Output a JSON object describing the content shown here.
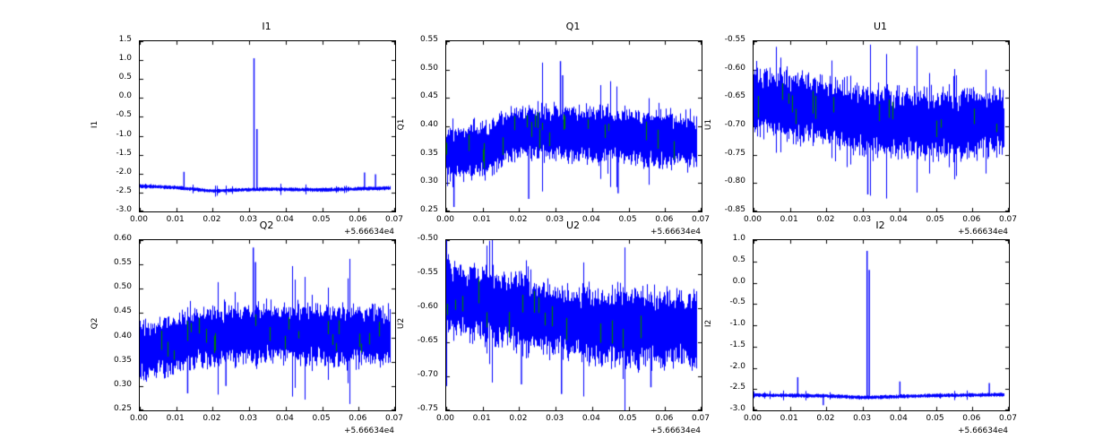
{
  "figure": {
    "background": "#ffffff",
    "line_color": "#0000ff",
    "marker_color": "#007f00",
    "text_color": "#000000"
  },
  "chart_data": [
    {
      "type": "line",
      "title": "I1",
      "ylabel": "I1",
      "xlabel": "",
      "xlim": [
        0,
        0.07
      ],
      "ylim": [
        -3.0,
        1.5
      ],
      "xtick_values": [
        0,
        0.01,
        0.02,
        0.03,
        0.04,
        0.05,
        0.06,
        0.07
      ],
      "xtick_labels": [
        "0.00",
        "0.01",
        "0.02",
        "0.03",
        "0.04",
        "0.05",
        "0.06",
        "0.07"
      ],
      "x_offset_label": "+5.66634e4",
      "ytick_values": [
        1.5,
        1.0,
        0.5,
        0.0,
        -0.5,
        -1.0,
        -1.5,
        -2.0,
        -2.5,
        -3.0
      ],
      "ytick_labels": [
        "1.5",
        "1.0",
        "0.5",
        "0.0",
        "-0.5",
        "-1.0",
        "-1.5",
        "-2.0",
        "-2.5",
        "-3.0"
      ],
      "series_desc": {
        "seed": 11,
        "x_data_max": 0.0685,
        "baseline_keypoints": [
          [
            0,
            -2.33
          ],
          [
            0.01,
            -2.37
          ],
          [
            0.02,
            -2.46
          ],
          [
            0.027,
            -2.43
          ],
          [
            0.035,
            -2.41
          ],
          [
            0.05,
            -2.43
          ],
          [
            0.0685,
            -2.38
          ]
        ],
        "noise_half_width": 0.05,
        "excursion": 2.2,
        "spikes": [
          [
            0.0312,
            1.05
          ],
          [
            0.032,
            -0.82
          ],
          [
            0.012,
            -1.95
          ],
          [
            0.0615,
            -1.97
          ],
          [
            0.0645,
            -2.02
          ]
        ],
        "green_marks": 0
      }
    },
    {
      "type": "line",
      "title": "Q1",
      "ylabel": "Q1",
      "xlabel": "",
      "xlim": [
        0,
        0.07
      ],
      "ylim": [
        0.25,
        0.55
      ],
      "xtick_values": [
        0,
        0.01,
        0.02,
        0.03,
        0.04,
        0.05,
        0.06,
        0.07
      ],
      "xtick_labels": [
        "0.00",
        "0.01",
        "0.02",
        "0.03",
        "0.04",
        "0.05",
        "0.06",
        "0.07"
      ],
      "x_offset_label": "+5.66634e4",
      "ytick_values": [
        0.55,
        0.5,
        0.45,
        0.4,
        0.35,
        0.3,
        0.25
      ],
      "ytick_labels": [
        "0.55",
        "0.50",
        "0.45",
        "0.40",
        "0.35",
        "0.30",
        "0.25"
      ],
      "series_desc": {
        "seed": 22,
        "x_data_max": 0.0685,
        "baseline_keypoints": [
          [
            0,
            0.348
          ],
          [
            0.012,
            0.362
          ],
          [
            0.02,
            0.392
          ],
          [
            0.03,
            0.39
          ],
          [
            0.045,
            0.383
          ],
          [
            0.0685,
            0.373
          ]
        ],
        "noise_half_width": 0.048,
        "excursion": 1.5,
        "spikes": [
          [
            0.0312,
            0.515
          ],
          [
            0.0318,
            0.49
          ],
          [
            0.002,
            0.258
          ],
          [
            0.0225,
            0.272
          ],
          [
            0.047,
            0.282
          ]
        ],
        "green_marks": 22
      }
    },
    {
      "type": "line",
      "title": "U1",
      "ylabel": "U1",
      "xlabel": "",
      "xlim": [
        0,
        0.07
      ],
      "ylim": [
        -0.85,
        -0.55
      ],
      "xtick_values": [
        0,
        0.01,
        0.02,
        0.03,
        0.04,
        0.05,
        0.06,
        0.07
      ],
      "xtick_labels": [
        "0.00",
        "0.01",
        "0.02",
        "0.03",
        "0.04",
        "0.05",
        "0.06",
        "0.07"
      ],
      "x_offset_label": "+5.66634e4",
      "ytick_values": [
        -0.55,
        -0.6,
        -0.65,
        -0.7,
        -0.75,
        -0.8,
        -0.85
      ],
      "ytick_labels": [
        "-0.55",
        "-0.60",
        "-0.65",
        "-0.70",
        "-0.75",
        "-0.80",
        "-0.85"
      ],
      "series_desc": {
        "seed": 33,
        "x_data_max": 0.0685,
        "baseline_keypoints": [
          [
            0,
            -0.652
          ],
          [
            0.015,
            -0.668
          ],
          [
            0.03,
            -0.69
          ],
          [
            0.05,
            -0.697
          ],
          [
            0.0685,
            -0.693
          ]
        ],
        "noise_half_width": 0.058,
        "excursion": 1.4,
        "spikes": [
          [
            0.0312,
            -0.82
          ]
        ],
        "green_marks": 16
      }
    },
    {
      "type": "line",
      "title": "Q2",
      "ylabel": "Q2",
      "xlabel": "",
      "xlim": [
        0,
        0.07
      ],
      "ylim": [
        0.25,
        0.6
      ],
      "xtick_values": [
        0,
        0.01,
        0.02,
        0.03,
        0.04,
        0.05,
        0.06,
        0.07
      ],
      "xtick_labels": [
        "0.00",
        "0.01",
        "0.02",
        "0.03",
        "0.04",
        "0.05",
        "0.06",
        "0.07"
      ],
      "x_offset_label": "+5.66634e4",
      "ytick_values": [
        0.6,
        0.55,
        0.5,
        0.45,
        0.4,
        0.35,
        0.3,
        0.25
      ],
      "ytick_labels": [
        "0.60",
        "0.55",
        "0.50",
        "0.45",
        "0.40",
        "0.35",
        "0.30",
        "0.25"
      ],
      "series_desc": {
        "seed": 44,
        "x_data_max": 0.0685,
        "baseline_keypoints": [
          [
            0,
            0.372
          ],
          [
            0.02,
            0.405
          ],
          [
            0.035,
            0.41
          ],
          [
            0.055,
            0.405
          ],
          [
            0.0685,
            0.402
          ]
        ],
        "noise_half_width": 0.06,
        "excursion": 1.5,
        "spikes": [
          [
            0.031,
            0.585
          ],
          [
            0.0316,
            0.555
          ],
          [
            0.013,
            0.285
          ],
          [
            0.0235,
            0.3
          ]
        ],
        "green_marks": 22
      }
    },
    {
      "type": "line",
      "title": "U2",
      "ylabel": "U2",
      "xlabel": "",
      "xlim": [
        0,
        0.07
      ],
      "ylim": [
        -0.75,
        -0.5
      ],
      "xtick_values": [
        0,
        0.01,
        0.02,
        0.03,
        0.04,
        0.05,
        0.06,
        0.07
      ],
      "xtick_labels": [
        "0.00",
        "0.01",
        "0.02",
        "0.03",
        "0.04",
        "0.05",
        "0.06",
        "0.07"
      ],
      "x_offset_label": "+5.66634e4",
      "ytick_values": [
        -0.5,
        -0.55,
        -0.6,
        -0.65,
        -0.7,
        -0.75
      ],
      "ytick_labels": [
        "-0.50",
        "-0.55",
        "-0.60",
        "-0.65",
        "-0.70",
        "-0.75"
      ],
      "series_desc": {
        "seed": 55,
        "x_data_max": 0.0685,
        "baseline_keypoints": [
          [
            0,
            -0.582
          ],
          [
            0.02,
            -0.605
          ],
          [
            0.04,
            -0.625
          ],
          [
            0.0685,
            -0.632
          ]
        ],
        "noise_half_width": 0.055,
        "excursion": 1.4,
        "spikes": [
          [
            0.0315,
            -0.726
          ],
          [
            0.0205,
            -0.712
          ],
          [
            0.056,
            -0.716
          ]
        ],
        "green_marks": 16
      }
    },
    {
      "type": "line",
      "title": "I2",
      "ylabel": "I2",
      "xlabel": "",
      "xlim": [
        0,
        0.07
      ],
      "ylim": [
        -3.0,
        1.0
      ],
      "xtick_values": [
        0,
        0.01,
        0.02,
        0.03,
        0.04,
        0.05,
        0.06,
        0.07
      ],
      "xtick_labels": [
        "0.00",
        "0.01",
        "0.02",
        "0.03",
        "0.04",
        "0.05",
        "0.06",
        "0.07"
      ],
      "x_offset_label": "+5.66634e4",
      "ytick_values": [
        1.0,
        0.5,
        0.0,
        -0.5,
        -1.0,
        -1.5,
        -2.0,
        -2.5,
        -3.0
      ],
      "ytick_labels": [
        "1.0",
        "0.5",
        "0.0",
        "-0.5",
        "-1.0",
        "-1.5",
        "-2.0",
        "-2.5",
        "-3.0"
      ],
      "series_desc": {
        "seed": 66,
        "x_data_max": 0.0685,
        "baseline_keypoints": [
          [
            0,
            -2.64
          ],
          [
            0.02,
            -2.66
          ],
          [
            0.03,
            -2.7
          ],
          [
            0.045,
            -2.66
          ],
          [
            0.0685,
            -2.63
          ]
        ],
        "noise_half_width": 0.045,
        "excursion": 2.0,
        "spikes": [
          [
            0.031,
            0.75
          ],
          [
            0.0316,
            0.3
          ],
          [
            0.012,
            -2.22
          ],
          [
            0.019,
            -2.88
          ],
          [
            0.04,
            -2.32
          ],
          [
            0.0645,
            -2.36
          ]
        ],
        "green_marks": 0
      }
    }
  ]
}
